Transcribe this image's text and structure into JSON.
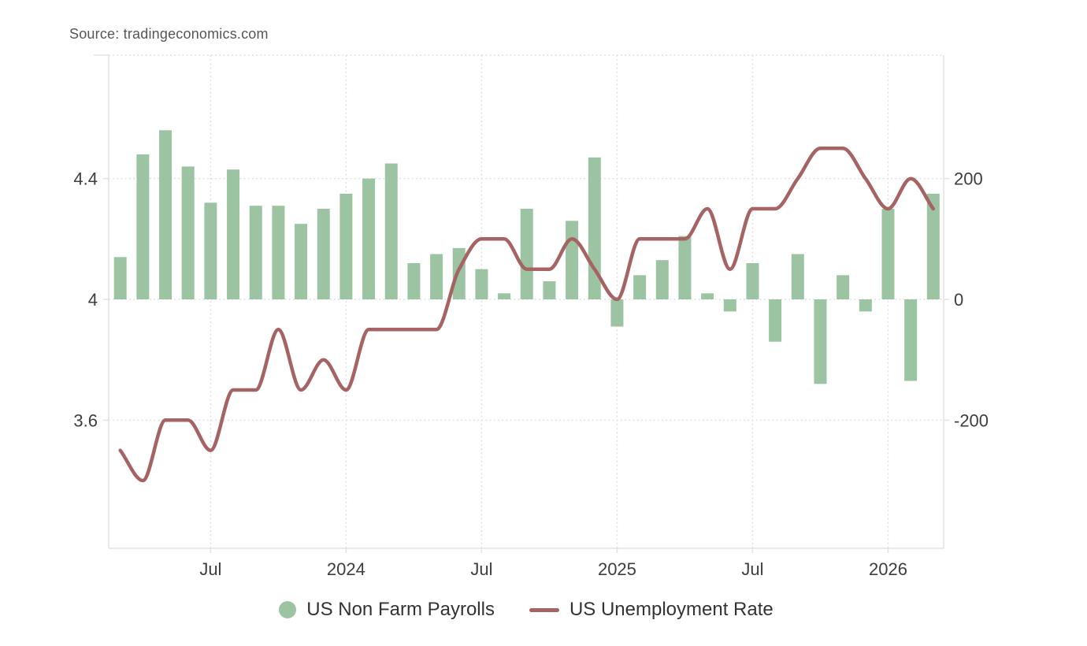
{
  "source": {
    "text": "Source: tradingeconomics.com"
  },
  "colors": {
    "background": "#ffffff",
    "bar_green": "#9cc4a2",
    "line_maroon": "#a56363",
    "grid_dotted": "#dedede",
    "axis_line": "#e2e2e2",
    "axis_text": "#3d3d3d",
    "source_text": "#565656",
    "legend_text": "#333333"
  },
  "chart_data": {
    "type": "bar+line",
    "title": "",
    "months": [
      "2023-03",
      "2023-04",
      "2023-05",
      "2023-06",
      "2023-07",
      "2023-08",
      "2023-09",
      "2023-10",
      "2023-11",
      "2023-12",
      "2024-01",
      "2024-02",
      "2024-03",
      "2024-04",
      "2024-05",
      "2024-06",
      "2024-07",
      "2024-08",
      "2024-09",
      "2024-10",
      "2024-11",
      "2024-12",
      "2025-01",
      "2025-02",
      "2025-03",
      "2025-04",
      "2025-05",
      "2025-06",
      "2025-07",
      "2025-08",
      "2025-09",
      "2025-10",
      "2025-11",
      "2025-12",
      "2026-01",
      "2026-02",
      "2026-03"
    ],
    "x_tick_labels": [
      {
        "label": "Jul",
        "index": 4
      },
      {
        "label": "2024",
        "index": 10
      },
      {
        "label": "Jul",
        "index": 16
      },
      {
        "label": "2025",
        "index": 22
      },
      {
        "label": "Jul",
        "index": 28
      },
      {
        "label": "2026",
        "index": 34
      }
    ],
    "left_axis": {
      "tick_labels": [
        "4.4",
        "4",
        "3.6"
      ],
      "tick_values": [
        4.4,
        4.0,
        3.6
      ],
      "series": "US Unemployment Rate"
    },
    "right_axis": {
      "tick_labels": [
        "200",
        "0",
        "-200"
      ],
      "tick_values": [
        200,
        0,
        -200
      ],
      "series": "US Non Farm Payrolls"
    },
    "grid": true,
    "legend_position": "bottom",
    "series": [
      {
        "name": "US Non Farm Payrolls",
        "type": "bar",
        "axis": "right",
        "color": "#9cc4a2",
        "values": [
          70,
          240,
          280,
          220,
          160,
          215,
          155,
          155,
          125,
          150,
          175,
          200,
          225,
          60,
          75,
          85,
          50,
          10,
          150,
          30,
          130,
          235,
          -45,
          40,
          65,
          105,
          10,
          -20,
          60,
          -70,
          75,
          -140,
          40,
          -20,
          150,
          -135,
          175
        ]
      },
      {
        "name": "US Unemployment Rate",
        "type": "line",
        "axis": "left",
        "color": "#a56363",
        "values": [
          3.5,
          3.4,
          3.6,
          3.6,
          3.5,
          3.7,
          3.7,
          3.9,
          3.7,
          3.8,
          3.7,
          3.9,
          3.9,
          3.9,
          3.9,
          4.1,
          4.2,
          4.2,
          4.1,
          4.1,
          4.2,
          4.1,
          4.0,
          4.2,
          4.2,
          4.2,
          4.3,
          4.1,
          4.3,
          4.3,
          4.4,
          4.5,
          4.5,
          4.4,
          4.3,
          4.4,
          4.3
        ]
      }
    ],
    "legend": [
      "US Non Farm Payrolls",
      "US Unemployment Rate"
    ]
  }
}
